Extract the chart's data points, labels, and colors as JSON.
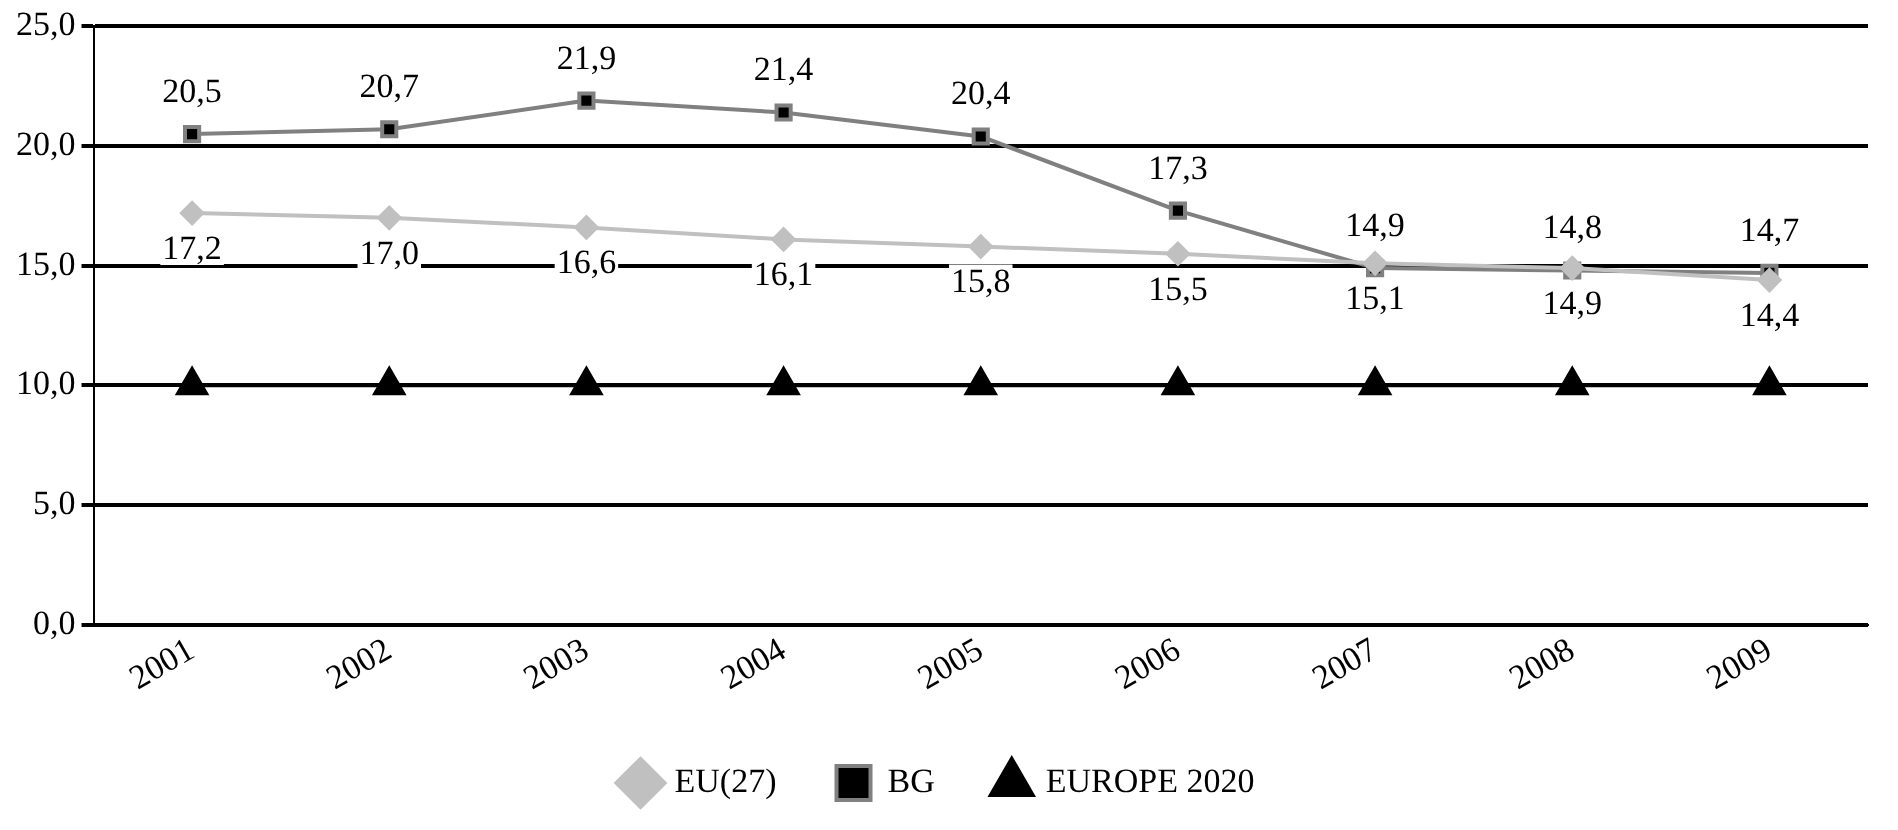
{
  "chart_data": {
    "type": "line",
    "categories": [
      "2001",
      "2002",
      "2003",
      "2004",
      "2005",
      "2006",
      "2007",
      "2008",
      "2009"
    ],
    "series": [
      {
        "name": "EU(27)",
        "color": "#c0c0c0",
        "marker": "diamond",
        "values": [
          17.2,
          17.0,
          16.6,
          16.1,
          15.8,
          15.5,
          15.1,
          14.9,
          14.4
        ],
        "value_labels": [
          "17,2",
          "17,0",
          "16,6",
          "16,1",
          "15,8",
          "15,5",
          "15,1",
          "14,9",
          "14,4"
        ]
      },
      {
        "name": "BG",
        "color": "#808080",
        "marker": "square",
        "values": [
          20.5,
          20.7,
          21.9,
          21.4,
          20.4,
          17.3,
          14.9,
          14.8,
          14.7
        ],
        "value_labels": [
          "20,5",
          "20,7",
          "21,9",
          "21,4",
          "20,4",
          "17,3",
          "14,9",
          "14,8",
          "14,7"
        ]
      },
      {
        "name": "EUROPE 2020",
        "color": "#000000",
        "marker": "triangle",
        "values": [
          10,
          10,
          10,
          10,
          10,
          10,
          10,
          10,
          10
        ]
      }
    ],
    "ylim": [
      0,
      25
    ],
    "yticks": [
      {
        "value": 0,
        "label": "0,0"
      },
      {
        "value": 5,
        "label": "5,0"
      },
      {
        "value": 10,
        "label": "10,0"
      },
      {
        "value": 15,
        "label": "15,0"
      },
      {
        "value": 20,
        "label": "20,0"
      },
      {
        "value": 25,
        "label": "25,0"
      }
    ],
    "grid": "y",
    "legend": "bottom",
    "line_style": "solid"
  }
}
